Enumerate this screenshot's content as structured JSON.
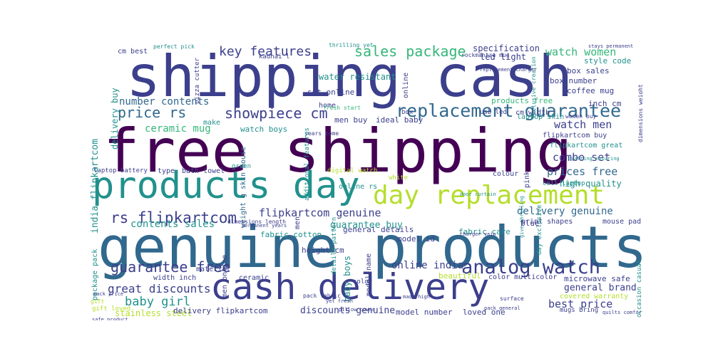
{
  "colors": {
    "dark_purple": "#440154",
    "indigo": "#3b3f8c",
    "blue": "#31688e",
    "teal": "#21918c",
    "green": "#35b779",
    "lime": "#b5de2b",
    "background": "#ffffff"
  },
  "words": [
    "shipping cash",
    "free shipping",
    "genuine products",
    "products day",
    "cash delivery",
    "day replacement",
    "replacement guarantee",
    "analog watch",
    "sales package",
    "price rs",
    "key features",
    "showpiece cm",
    "watch women",
    "rs flipkartcom",
    "flipkartcom genuine",
    "guarantee free",
    "india flipkartcom",
    "ceramic mug",
    "number contents",
    "contents sales",
    "combo set",
    "watch men",
    "prices free",
    "delivery genuine",
    "great discounts",
    "baby girl",
    "best price",
    "general brand",
    "delivery buy",
    "online india",
    "guarantee buy",
    "stainless steel",
    "discounts genuine",
    "delivery flipkartcom",
    "model number",
    "loved one",
    "package pack",
    "fabric cotton",
    "men buy",
    "ideal baby",
    "set online",
    "water resistant",
    "specification",
    "led light",
    "box sales",
    "coffee mug",
    "box number",
    "style code",
    "watch boys",
    "laptop skin",
    "skin mouse",
    "cm best",
    "perfect pick",
    "kadhai l",
    "pizza cutter",
    "thrilling yet",
    "flipkartcom buy",
    "flipkartcom great",
    "online rs",
    "baby boys",
    "general details",
    "model id",
    "fabric care",
    "print shapes",
    "mouse pad",
    "microwave safe",
    "covered warranty",
    "color multicolor",
    "high quality",
    "width inch",
    "material",
    "ceramic",
    "height cm",
    "men online",
    "bath towel",
    "laptop battery",
    "type",
    "weight g",
    "gift loved",
    "beautiful",
    "colour",
    "blue",
    "pink",
    "white",
    "home",
    "box",
    "digital watch",
    "inch cm",
    "usb led",
    "cm width",
    "cell laptop",
    "women buy",
    "years come",
    "fresh start",
    "additional features",
    "make",
    "green",
    "color",
    "mugs bring",
    "quilts comforters",
    "day exclusive",
    "occasion casual",
    "model name",
    "details pattern",
    "products free",
    "yet fresh",
    "pack fabric",
    "safe product",
    "rockmantra mug",
    "dimensions weight",
    "crafting ensuring",
    "stays permanent",
    "exclusive creation",
    "pillow cover",
    "dimensions length",
    "permanent years",
    "replacement charger",
    "give thrilling",
    "door curtain",
    "charger vaio",
    "gift",
    "surface",
    "pack price",
    "pack general",
    "made high",
    "online",
    "men"
  ]
}
